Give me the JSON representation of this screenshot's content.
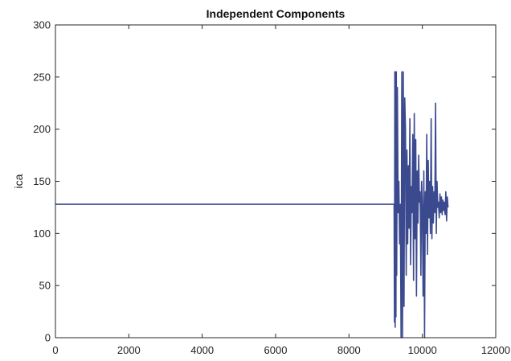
{
  "chart_data": {
    "type": "line",
    "title": "Independent Components",
    "xlabel": "",
    "ylabel": "ica",
    "xlim": [
      0,
      12000
    ],
    "ylim": [
      0,
      300
    ],
    "xticks": [
      0,
      2000,
      4000,
      6000,
      8000,
      10000,
      12000
    ],
    "yticks": [
      0,
      50,
      100,
      150,
      200,
      250,
      300
    ],
    "xtick_labels": [
      "0",
      "2000",
      "4000",
      "6000",
      "8000",
      "10000",
      "12000"
    ],
    "ytick_labels": [
      "0",
      "50",
      "100",
      "150",
      "200",
      "250",
      "300"
    ],
    "grid": false,
    "line_color": "#3b4a8f",
    "series": [
      {
        "x": [
          0,
          9200,
          9230,
          9240,
          9250,
          9260,
          9270,
          9280,
          9290,
          9300,
          9320,
          9340,
          9360,
          9380,
          9400,
          9420,
          9440,
          9460,
          9480,
          9500,
          9520,
          9540,
          9560,
          9580,
          9600,
          9620,
          9640,
          9660,
          9680,
          9700,
          9720,
          9740,
          9760,
          9780,
          9800,
          9820,
          9840,
          9860,
          9880,
          9900,
          9920,
          9940,
          9960,
          9980,
          10000,
          10020,
          10040,
          10060,
          10080,
          10100,
          10120,
          10140,
          10160,
          10180,
          10200,
          10220,
          10240,
          10260,
          10280,
          10300,
          10320,
          10340,
          10360,
          10380,
          10400,
          10420,
          10440,
          10460,
          10480,
          10500,
          10520,
          10540,
          10560,
          10580,
          10600,
          10620,
          10640,
          10660,
          10680,
          10700
        ],
        "y": [
          128,
          128,
          128,
          15,
          255,
          10,
          255,
          20,
          255,
          60,
          240,
          120,
          150,
          90,
          128,
          0,
          255,
          0,
          255,
          30,
          230,
          200,
          60,
          180,
          90,
          165,
          105,
          210,
          70,
          145,
          120,
          195,
          55,
          215,
          95,
          190,
          40,
          160,
          110,
          175,
          130,
          140,
          60,
          150,
          125,
          40,
          160,
          0,
          140,
          100,
          195,
          80,
          170,
          115,
          150,
          100,
          210,
          95,
          145,
          110,
          140,
          120,
          225,
          100,
          150,
          125,
          130,
          115,
          138,
          120,
          135,
          118,
          132,
          122,
          130,
          118,
          140,
          112,
          135,
          125
        ]
      }
    ]
  }
}
